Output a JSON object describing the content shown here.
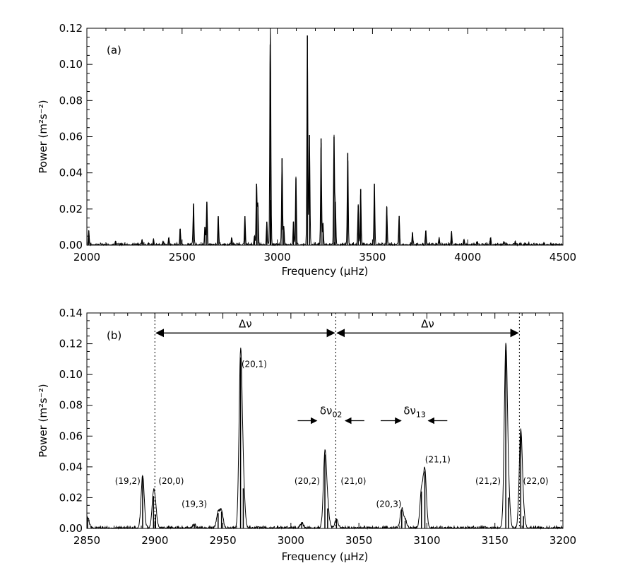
{
  "chart_data": [
    {
      "type": "line",
      "panel_label": "(a)",
      "xlabel": "Frequency (μHz)",
      "ylabel": "Power (m²s⁻²)",
      "xlim": [
        2000,
        4500
      ],
      "ylim": [
        0,
        0.12
      ],
      "xticks": [
        2000,
        2500,
        3000,
        3500,
        4000,
        4500
      ],
      "xtick_labels": [
        "2000",
        "2500",
        "3000",
        "3500",
        "4000",
        "4500"
      ],
      "yticks": [
        0,
        0.02,
        0.04,
        0.06,
        0.08,
        0.1,
        0.12
      ],
      "ytick_labels": [
        "0.00",
        "0.02",
        "0.04",
        "0.06",
        "0.08",
        "0.10",
        "0.12"
      ],
      "series": [
        {
          "peaks": [
            [
              2010,
              0.008
            ],
            [
              2150,
              0.002
            ],
            [
              2290,
              0.003
            ],
            [
              2350,
              0.003
            ],
            [
              2400,
              0.002
            ],
            [
              2430,
              0.004
            ],
            [
              2490,
              0.009
            ],
            [
              2560,
              0.023
            ],
            [
              2620,
              0.01
            ],
            [
              2630,
              0.024
            ],
            [
              2690,
              0.016
            ],
            [
              2760,
              0.004
            ],
            [
              2830,
              0.016
            ],
            [
              2880,
              0.005
            ],
            [
              2891,
              0.034
            ],
            [
              2898,
              0.022
            ],
            [
              2945,
              0.013
            ],
            [
              2963,
              0.111
            ],
            [
              2966,
              0.025
            ],
            [
              3025,
              0.048
            ],
            [
              3034,
              0.01
            ],
            [
              3085,
              0.013
            ],
            [
              3098,
              0.037
            ],
            [
              3158,
              0.116
            ],
            [
              3169,
              0.061
            ],
            [
              3230,
              0.059
            ],
            [
              3240,
              0.012
            ],
            [
              3298,
              0.06
            ],
            [
              3305,
              0.024
            ],
            [
              3370,
              0.051
            ],
            [
              3425,
              0.022
            ],
            [
              3438,
              0.031
            ],
            [
              3510,
              0.034
            ],
            [
              3575,
              0.021
            ],
            [
              3640,
              0.016
            ],
            [
              3710,
              0.007
            ],
            [
              3780,
              0.008
            ],
            [
              3850,
              0.004
            ],
            [
              3915,
              0.007
            ],
            [
              3980,
              0.003
            ],
            [
              4050,
              0.002
            ],
            [
              4120,
              0.004
            ],
            [
              4190,
              0.002
            ],
            [
              4250,
              0.002
            ],
            [
              4320,
              0.001
            ],
            [
              4400,
              0.001
            ]
          ]
        }
      ]
    },
    {
      "type": "line",
      "panel_label": "(b)",
      "xlabel": "Frequency (μHz)",
      "ylabel": "Power (m²s⁻²)",
      "xlim": [
        2850,
        3200
      ],
      "ylim": [
        0,
        0.14
      ],
      "xticks": [
        2850,
        2900,
        2950,
        3000,
        3050,
        3100,
        3150,
        3200
      ],
      "xtick_labels": [
        "2850",
        "2900",
        "2950",
        "3000",
        "3050",
        "3100",
        "3150",
        "3200"
      ],
      "yticks": [
        0,
        0.02,
        0.04,
        0.06,
        0.08,
        0.1,
        0.12,
        0.14
      ],
      "ytick_labels": [
        "0.00",
        "0.02",
        "0.04",
        "0.06",
        "0.08",
        "0.10",
        "0.12",
        "0.14"
      ],
      "series": [
        {
          "peaks": [
            [
              2850.5,
              0.007
            ],
            [
              2891,
              0.034
            ],
            [
              2899,
              0.021
            ],
            [
              2900.5,
              0.009
            ],
            [
              2929,
              0.002
            ],
            [
              2946.5,
              0.01
            ],
            [
              2949,
              0.011
            ],
            [
              2963,
              0.111
            ],
            [
              2965,
              0.026
            ],
            [
              3008,
              0.003
            ],
            [
              3025,
              0.048
            ],
            [
              3027,
              0.013
            ],
            [
              3033.5,
              0.006
            ],
            [
              3081.5,
              0.012
            ],
            [
              3084,
              0.005
            ],
            [
              3096,
              0.024
            ],
            [
              3098.5,
              0.037
            ],
            [
              3158,
              0.116
            ],
            [
              3160,
              0.02
            ],
            [
              3169,
              0.062
            ],
            [
              3171,
              0.008
            ]
          ]
        }
      ],
      "vlines": [
        2900,
        3033,
        3168
      ],
      "annotations": {
        "delta_nu_1": {
          "text": "Δν",
          "from": 2900,
          "to": 3033,
          "y": 0.127
        },
        "delta_nu_2": {
          "text": "Δν",
          "from": 3033,
          "to": 3168,
          "y": 0.127
        },
        "delta_nu_02": {
          "symbol": "δν",
          "subscript": "02",
          "arrow_left": [
            3005,
            3019
          ],
          "arrow_right": [
            3054,
            3040
          ],
          "y": 0.07
        },
        "delta_nu_13": {
          "symbol": "δν",
          "subscript": "13",
          "arrow_left": [
            3066,
            3081
          ],
          "arrow_right": [
            3115,
            3101
          ],
          "y": 0.07
        },
        "modes": [
          {
            "text": "(19,2)",
            "x": 2880,
            "y": 0.029
          },
          {
            "text": "(20,0)",
            "x": 2912,
            "y": 0.029
          },
          {
            "text": "(19,3)",
            "x": 2929,
            "y": 0.014
          },
          {
            "text": "(20,1)",
            "x": 2973,
            "y": 0.105
          },
          {
            "text": "(20,2)",
            "x": 3012,
            "y": 0.029
          },
          {
            "text": "(21,0)",
            "x": 3046,
            "y": 0.029
          },
          {
            "text": "(20,3)",
            "x": 3072,
            "y": 0.014
          },
          {
            "text": "(21,1)",
            "x": 3108,
            "y": 0.043
          },
          {
            "text": "(21,2)",
            "x": 3145,
            "y": 0.029
          },
          {
            "text": "(22,0)",
            "x": 3180,
            "y": 0.029
          }
        ]
      }
    }
  ]
}
